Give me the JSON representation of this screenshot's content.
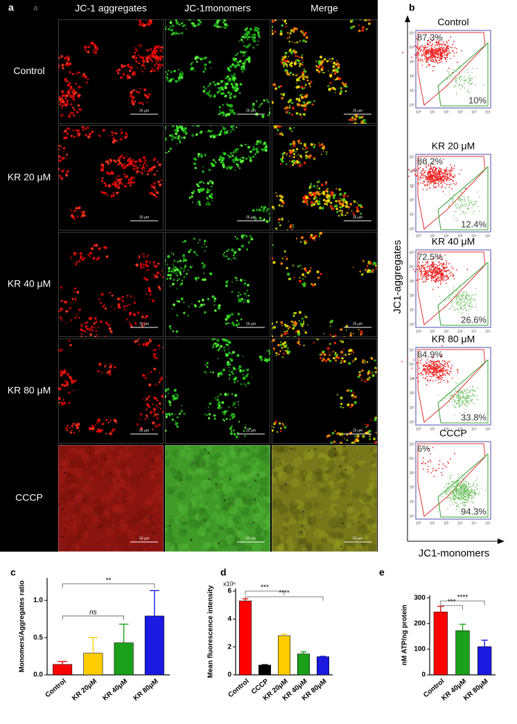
{
  "panel_a": {
    "label": "a",
    "sub_label": "a",
    "columns": [
      "JC-1 aggregates",
      "JC-1monomers",
      "Merge"
    ],
    "rows": [
      "Control",
      "KR 20 μM",
      "KR 40 μM",
      "KR 80 μM",
      "CCCP"
    ],
    "scale_bars": [
      "25 μm",
      "25 μm",
      "25 μm",
      "25 μm",
      "50 μm"
    ]
  },
  "panel_b": {
    "label": "b",
    "y_label": "JC1-aggregates",
    "x_label": "JC1-monomers",
    "axis_tick_labels": [
      "10⁰",
      "10¹",
      "10²",
      "10³",
      "10⁴",
      "10⁵"
    ],
    "samples": [
      {
        "name": "Control",
        "aggregates": "87.3%",
        "monomers": "10%"
      },
      {
        "name": "KR 20 μM",
        "aggregates": "86.2%",
        "monomers": "12.4%"
      },
      {
        "name": "KR 40 μM",
        "aggregates": "72.5%",
        "monomers": "26.6%"
      },
      {
        "name": "KR 80 μM",
        "aggregates": "64.9%",
        "monomers": "33.8%"
      },
      {
        "name": "CCCP",
        "aggregates": "6%",
        "monomers": "94.3%"
      }
    ]
  },
  "chart_data": [
    {
      "type": "bar",
      "panel_label": "c",
      "y_label": "Monomers/Aggregates ratio",
      "categories": [
        "Control",
        "KR 20μM",
        "KR 40μM",
        "KR 80μM"
      ],
      "values": [
        0.14,
        0.29,
        0.43,
        0.79
      ],
      "errors": [
        0.04,
        0.21,
        0.25,
        0.34
      ],
      "colors": [
        "#ff0000",
        "#ffcc00",
        "#1aa01a",
        "#1a1ae0"
      ],
      "ylim": [
        0,
        1.3
      ],
      "yticks": [
        {
          "value": 0,
          "label": "0.0"
        },
        0.5,
        {
          "value": 1,
          "label": "1.0"
        }
      ],
      "annotations": [
        {
          "text": "ns",
          "between": [
            "Control",
            "KR 40μM"
          ],
          "y": 0.79
        },
        {
          "text": "**",
          "between": [
            "Control",
            "KR 80μM"
          ],
          "y": 1.22
        }
      ]
    },
    {
      "type": "bar",
      "panel_label": "d",
      "y_label": "Mean fluorescence intensity",
      "y_multiplier": "x10⁶",
      "categories": [
        "Control",
        "CCCP",
        "KR 20μM",
        "KR 40μM",
        "KR 80μM"
      ],
      "values": [
        5.3,
        0.7,
        2.8,
        1.5,
        1.3
      ],
      "errors": [
        0.15,
        0.03,
        0.12,
        0.15,
        0.03
      ],
      "colors": [
        "#ff0000",
        "#000000",
        "#ffcc00",
        "#1aa01a",
        "#1a1ae0"
      ],
      "ylim": [
        0,
        6.2
      ],
      "yticks": [
        0,
        2,
        4,
        6
      ],
      "annotations": [
        {
          "text": "***",
          "between": [
            "Control",
            "KR 20μM"
          ],
          "y": 6.0
        },
        {
          "text": "****",
          "between": [
            "Control",
            "KR 80μM"
          ],
          "y": 5.6
        }
      ]
    },
    {
      "type": "bar",
      "panel_label": "e",
      "y_label": "nM ATP/ng protein",
      "categories": [
        "Control",
        "KR 40μM",
        "KR 80μM"
      ],
      "values": [
        245,
        172,
        110
      ],
      "errors": [
        22,
        25,
        25
      ],
      "colors": [
        "#ff0000",
        "#1aa01a",
        "#1a1ae0"
      ],
      "ylim": [
        0,
        310
      ],
      "yticks": [
        0,
        100,
        200,
        300
      ],
      "annotations": [
        {
          "text": "***",
          "between": [
            "Control",
            "KR 40μM"
          ],
          "y": 270
        },
        {
          "text": "****",
          "between": [
            "Control",
            "KR 80μM"
          ],
          "y": 288
        }
      ]
    }
  ]
}
